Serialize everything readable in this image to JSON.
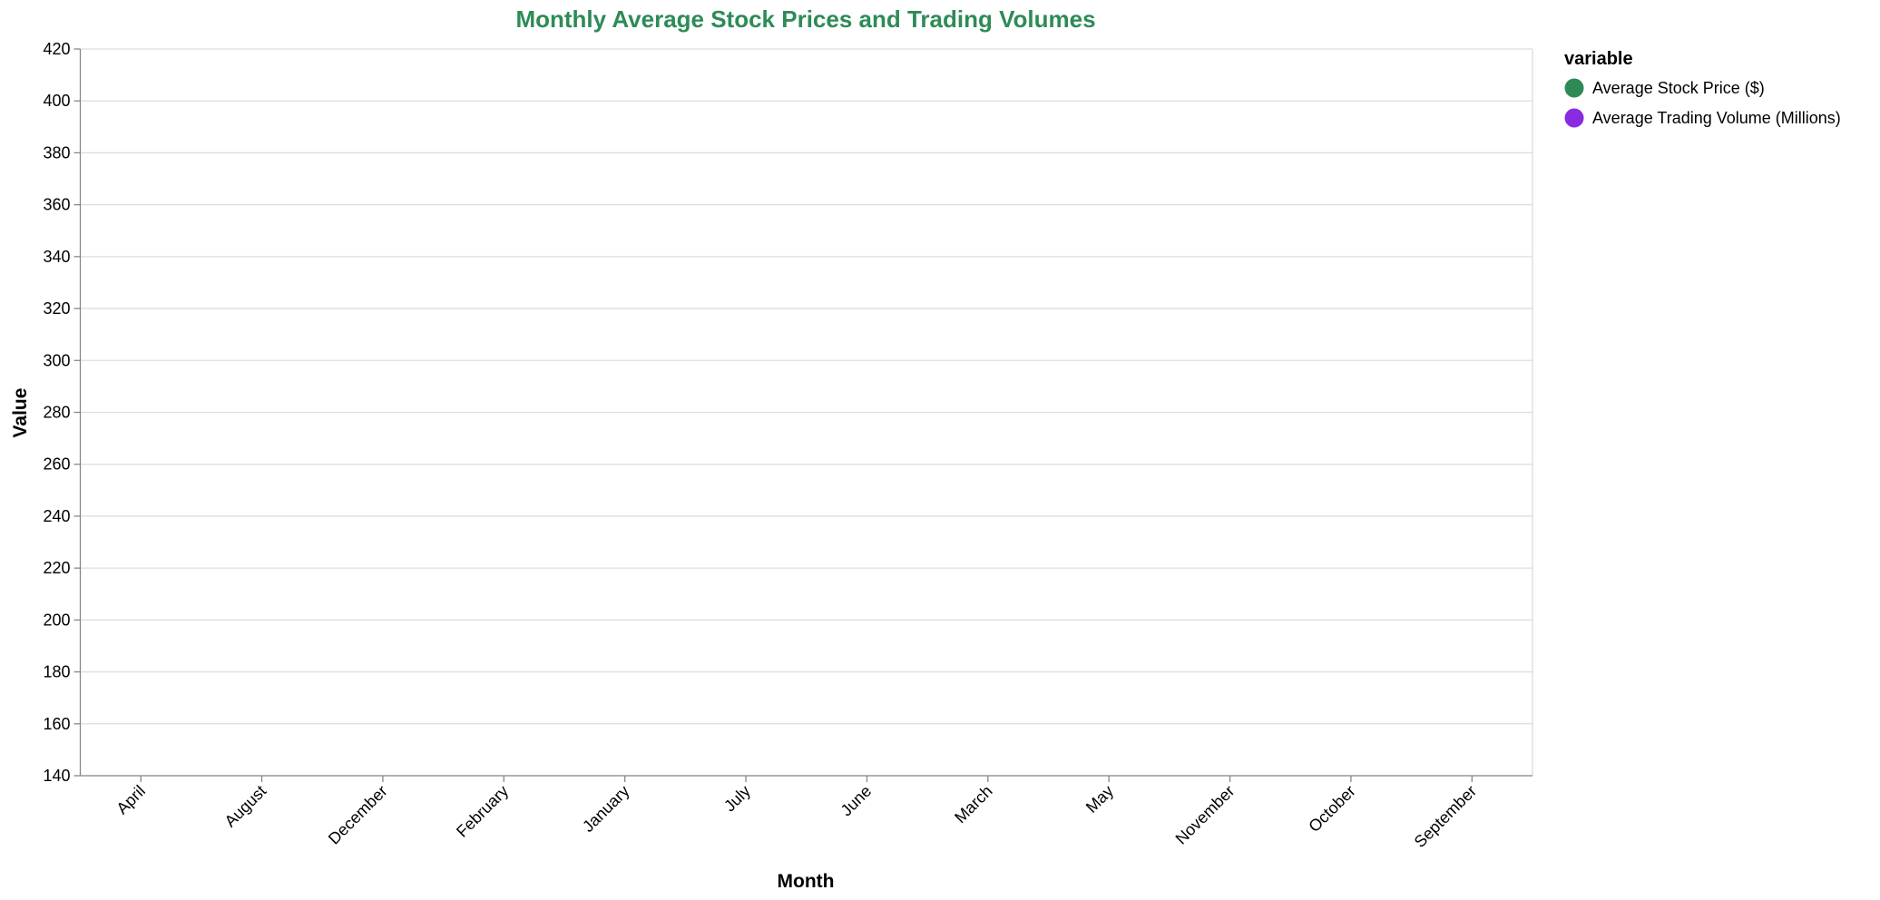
{
  "chart_data": {
    "type": "line",
    "title": "Monthly Average Stock Prices and Trading Volumes",
    "x_label": "Month",
    "y_label": "Value",
    "legend_title": "variable",
    "legend_position": "right",
    "grid": true,
    "categories": [
      "April",
      "August",
      "December",
      "February",
      "January",
      "July",
      "June",
      "March",
      "May",
      "November",
      "October",
      "September"
    ],
    "series": [
      {
        "name": "Average Stock Price ($)",
        "color": "#2e8b57",
        "values": [
          null,
          null,
          null,
          null,
          null,
          null,
          null,
          null,
          null,
          null,
          null,
          null
        ]
      },
      {
        "name": "Average Trading Volume (Millions)",
        "color": "#8a2be2",
        "values": [
          null,
          null,
          null,
          null,
          null,
          null,
          null,
          null,
          null,
          null,
          null,
          null
        ]
      }
    ],
    "ylim": [
      140,
      420
    ],
    "yticks": [
      140,
      160,
      180,
      200,
      220,
      240,
      260,
      280,
      300,
      320,
      340,
      360,
      380,
      400,
      420
    ]
  }
}
